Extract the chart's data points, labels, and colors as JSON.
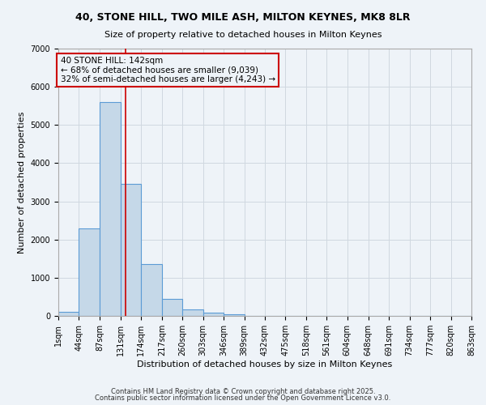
{
  "title1": "40, STONE HILL, TWO MILE ASH, MILTON KEYNES, MK8 8LR",
  "title2": "Size of property relative to detached houses in Milton Keynes",
  "xlabel": "Distribution of detached houses by size in Milton Keynes",
  "ylabel": "Number of detached properties",
  "bar_values": [
    100,
    2300,
    5600,
    3450,
    1350,
    450,
    175,
    90,
    50,
    5,
    0,
    0,
    0,
    0,
    0,
    0,
    0,
    0,
    0,
    0
  ],
  "bin_edges": [
    1,
    44,
    87,
    131,
    174,
    217,
    260,
    303,
    346,
    389,
    432,
    475,
    518,
    561,
    604,
    648,
    691,
    734,
    777,
    820,
    863
  ],
  "x_labels": [
    "1sqm",
    "44sqm",
    "87sqm",
    "131sqm",
    "174sqm",
    "217sqm",
    "260sqm",
    "303sqm",
    "346sqm",
    "389sqm",
    "432sqm",
    "475sqm",
    "518sqm",
    "561sqm",
    "604sqm",
    "648sqm",
    "691sqm",
    "734sqm",
    "777sqm",
    "820sqm",
    "863sqm"
  ],
  "bar_color": "#c5d8e8",
  "bar_edge_color": "#5b9bd5",
  "grid_color": "#d0d8e0",
  "background_color": "#eef3f8",
  "property_sqm": 142,
  "vline_color": "#cc0000",
  "annotation_line1": "40 STONE HILL: 142sqm",
  "annotation_line2": "← 68% of detached houses are smaller (9,039)",
  "annotation_line3": "32% of semi-detached houses are larger (4,243) →",
  "annotation_box_color": "#cc0000",
  "ylim": [
    0,
    7000
  ],
  "yticks": [
    0,
    1000,
    2000,
    3000,
    4000,
    5000,
    6000,
    7000
  ],
  "footer1": "Contains HM Land Registry data © Crown copyright and database right 2025.",
  "footer2": "Contains public sector information licensed under the Open Government Licence v3.0."
}
